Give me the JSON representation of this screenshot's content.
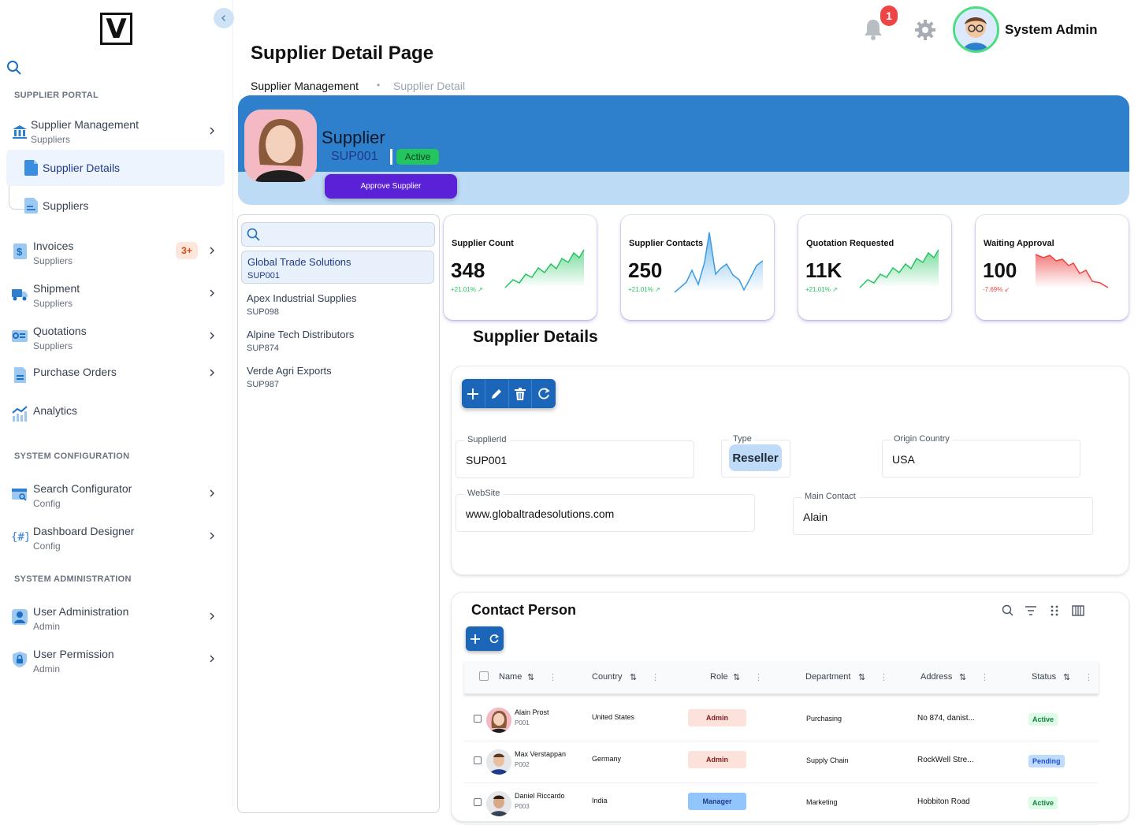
{
  "app": {
    "logo_letter": "V",
    "collapse_icon": "chevron-left-icon"
  },
  "sidebar": {
    "section_portal": "SUPPLIER PORTAL",
    "section_config": "SYSTEM CONFIGURATION",
    "section_admin": "SYSTEM ADMINISTRATION",
    "items": [
      {
        "label": "Supplier Management",
        "sub": "Suppliers",
        "icon": "bank-icon"
      },
      {
        "label": "Supplier Details",
        "icon": "document-icon"
      },
      {
        "label": "Suppliers",
        "icon": "document-lines-icon"
      },
      {
        "label": "Invoices",
        "sub": "Suppliers",
        "icon": "invoice-dollar-icon",
        "badge": "3+"
      },
      {
        "label": "Shipment",
        "sub": "Suppliers",
        "icon": "truck-icon"
      },
      {
        "label": "Quotations",
        "sub": "Suppliers",
        "icon": "quotation-icon"
      },
      {
        "label": "Purchase Orders",
        "icon": "purchase-order-icon"
      },
      {
        "label": "Analytics",
        "icon": "analytics-icon"
      },
      {
        "label": "Search Configurator",
        "sub": "Config",
        "icon": "search-config-icon"
      },
      {
        "label": "Dashboard Designer",
        "sub": "Config",
        "icon": "code-braces-icon"
      },
      {
        "label": "User Administration",
        "sub": "Admin",
        "icon": "user-icon"
      },
      {
        "label": "User Permission",
        "sub": "Admin",
        "icon": "lock-shield-icon"
      }
    ]
  },
  "header": {
    "title": "Supplier Detail Page",
    "breadcrumb": [
      "Supplier Management",
      "Supplier Detail"
    ],
    "notifications": "1",
    "user_name": "System Admin"
  },
  "banner": {
    "title": "Supplier",
    "supplier_id": "SUP001",
    "status": "Active",
    "approve_label": "Approve Supplier"
  },
  "supplier_list": [
    {
      "name": "Global Trade Solutions",
      "code": "SUP001"
    },
    {
      "name": "Apex Industrial Supplies",
      "code": "SUP098"
    },
    {
      "name": "Alpine Tech Distributors",
      "code": "SUP874"
    },
    {
      "name": "Verde Agri Exports",
      "code": "SUP987"
    }
  ],
  "kpis": [
    {
      "label": "Supplier Count",
      "value": "348",
      "change": "+21.01%",
      "color": "#22c55e"
    },
    {
      "label": "Supplier Contacts",
      "value": "250",
      "change": "+21.01%",
      "color": "#3b9be5"
    },
    {
      "label": "Quotation Requested",
      "value": "11K",
      "change": "+21.01%",
      "color": "#22c55e"
    },
    {
      "label": "Waiting Approval",
      "value": "100",
      "change": "-7.69%",
      "color": "#ef4444"
    }
  ],
  "details": {
    "title": "Supplier Details",
    "supplier_id_label": "SupplierId",
    "supplier_id": "SUP001",
    "type_label": "Type",
    "type": "Reseller",
    "origin_label": "Origin Country",
    "origin": "USA",
    "website_label": "WebSite",
    "website": "www.globaltradesolutions.com",
    "contact_label": "Main Contact",
    "contact": "Alain"
  },
  "contacts": {
    "title": "Contact Person",
    "columns": [
      "Name",
      "Country",
      "Role",
      "Department",
      "Address",
      "Status"
    ],
    "rows": [
      {
        "name": "Alain Prost",
        "id": "P001",
        "country": "United States",
        "role": "Admin",
        "dept": "Purchasing",
        "address": "No 874, danist...",
        "status": "Active"
      },
      {
        "name": "Max Verstappan",
        "id": "P002",
        "country": "Germany",
        "role": "Admin",
        "dept": "Supply Chain",
        "address": "RockWell Stre...",
        "status": "Pending"
      },
      {
        "name": "Daniel Riccardo",
        "id": "P003",
        "country": "India",
        "role": "Manager",
        "dept": "Marketing",
        "address": "Hobbiton Road",
        "status": "Active"
      }
    ]
  },
  "colors": {
    "accent": "#2f80cc",
    "approve": "#5b21d6",
    "toolbar": "#1b66b8"
  }
}
